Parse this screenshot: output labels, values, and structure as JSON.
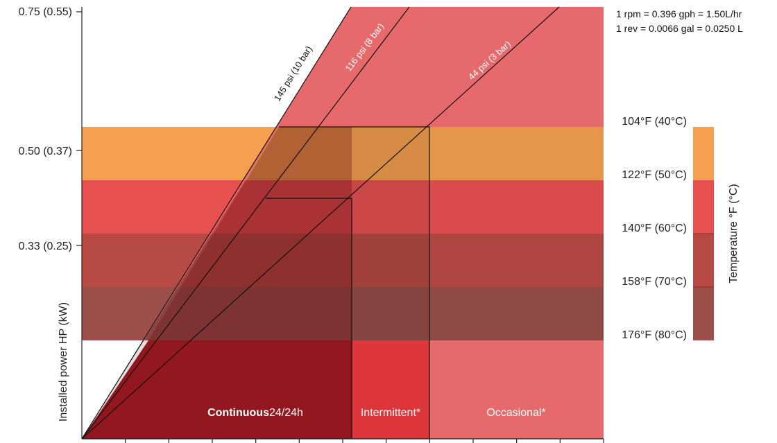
{
  "chart_data": {
    "type": "area",
    "ylabel": "Installed power HP (kW)",
    "y_ticks": [
      "0.75 (0.55)",
      "0.50 (0.37)",
      "0.33 (0.25)"
    ],
    "conversion_notes": [
      "1 rpm = 0.396 gph = 1.50L/hr",
      "1 rev = 0.0066 gal = 0.0250 L"
    ],
    "pressure_lines": [
      {
        "label": "145 psi (10 bar)",
        "label_color": "#111111"
      },
      {
        "label": "116 psi (8 bar)",
        "label_color": "#ffffff"
      },
      {
        "label": "44 psi (3 bar)",
        "label_color": "#ffffff"
      }
    ],
    "temperature_scale": {
      "title": "Temperature °F (°C)",
      "labels": [
        "104°F (40°C)",
        "122°F (50°C)",
        "140°F (60°C)",
        "158°F (70°C)",
        "176°F (80°C)"
      ],
      "colors": [
        "#f5a050",
        "#e85050",
        "#b84a45",
        "#9a4540"
      ]
    },
    "duty_zones": [
      {
        "label_bold": "Continuous",
        "label": "24/24h",
        "color": "#93171e"
      },
      {
        "label": "Intermittent*",
        "color": "#dd353a"
      },
      {
        "label": "Occasional*",
        "color": "#e66a6c"
      }
    ],
    "x_tick_count": 13,
    "legend": "right"
  }
}
